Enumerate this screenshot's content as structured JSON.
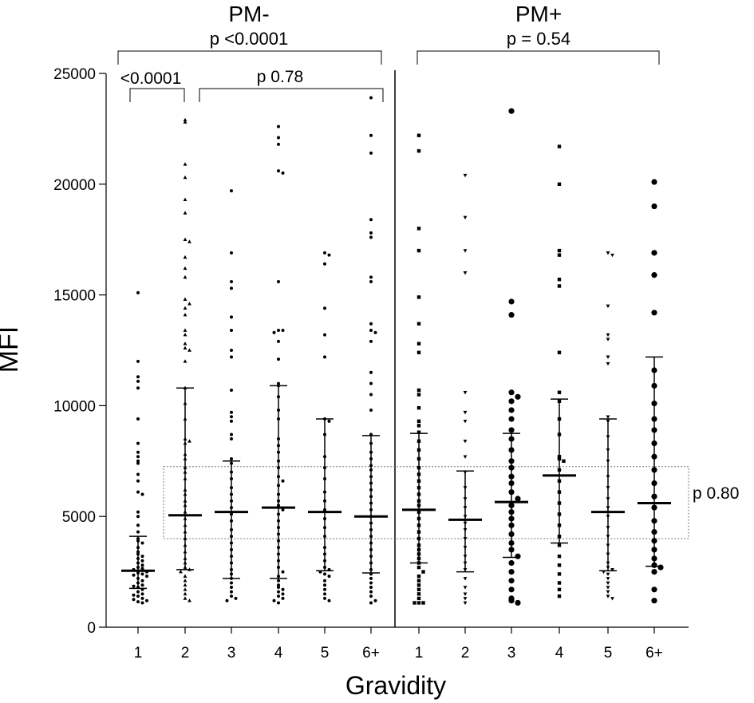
{
  "chart_data": {
    "type": "scatter",
    "ylabel": "MFI",
    "xlabel": "Gravidity",
    "ylim": [
      0,
      25000
    ],
    "yticks": [
      0,
      5000,
      10000,
      15000,
      20000,
      25000
    ],
    "groups": [
      {
        "label": "PM-",
        "overall_p": "p <0.0001",
        "categories": [
          "1",
          "2",
          "3",
          "4",
          "5",
          "6+"
        ],
        "marker": "small",
        "series": [
          {
            "category": "1",
            "marker": "circle",
            "median": 2550,
            "lower": 1750,
            "upper": 4100,
            "values": [
              15100,
              12000,
              11300,
              11100,
              10800,
              9400,
              8300,
              7900,
              7700,
              7500,
              7400,
              6900,
              6600,
              6100,
              6000,
              5200,
              5000,
              4600,
              4300,
              4000,
              3900,
              3800,
              3600,
              3400,
              3300,
              3200,
              3100,
              3000,
              2900,
              2800,
              2700,
              2650,
              2600,
              2500,
              2450,
              2400,
              2350,
              2300,
              2200,
              2100,
              2000,
              1900,
              1850,
              1800,
              1700,
              1600,
              1500,
              1450,
              1400,
              1300,
              1250,
              1200,
              1150,
              1100
            ]
          },
          {
            "category": "2",
            "marker": "triangle-up",
            "median": 5050,
            "lower": 2600,
            "upper": 10800,
            "values": [
              22900,
              22800,
              20900,
              20300,
              19300,
              18700,
              17500,
              17400,
              16700,
              16200,
              15800,
              14800,
              14600,
              14400,
              14100,
              13400,
              13200,
              12800,
              12600,
              12500,
              12000,
              10800,
              10100,
              9400,
              8500,
              8400,
              8300,
              7800,
              7600,
              7200,
              7000,
              6700,
              6200,
              6000,
              5700,
              5500,
              5200,
              4900,
              4600,
              4300,
              4000,
              3700,
              3400,
              3100,
              2900,
              2700,
              2600,
              2500,
              2300,
              2100,
              1900,
              1700,
              1500,
              1300,
              1200
            ]
          },
          {
            "category": "3",
            "marker": "circle",
            "median": 5200,
            "lower": 2200,
            "upper": 7500,
            "values": [
              19700,
              16900,
              15600,
              15300,
              14000,
              13400,
              12500,
              12200,
              10700,
              9700,
              9500,
              9300,
              8700,
              8500,
              7600,
              7400,
              7000,
              6700,
              6300,
              6000,
              5700,
              5400,
              5100,
              4800,
              4400,
              4100,
              3800,
              3500,
              3200,
              2900,
              2600,
              2400,
              2200,
              2000,
              1800,
              1600,
              1400,
              1300,
              1200
            ]
          },
          {
            "category": "4",
            "marker": "circle",
            "median": 5400,
            "lower": 2200,
            "upper": 10900,
            "values": [
              22600,
              22100,
              21800,
              20600,
              20500,
              15600,
              13400,
              13400,
              13300,
              12900,
              12100,
              11000,
              10900,
              10400,
              9800,
              9400,
              8500,
              8200,
              7900,
              7500,
              7200,
              6800,
              6600,
              6400,
              6000,
              5700,
              5500,
              5300,
              5100,
              4800,
              4500,
              4200,
              3900,
              3600,
              3300,
              3000,
              2700,
              2500,
              2300,
              2100,
              1900,
              1800,
              1700,
              1600,
              1500,
              1400,
              1300,
              1200,
              1100
            ]
          },
          {
            "category": "5",
            "marker": "circle",
            "median": 5200,
            "lower": 2550,
            "upper": 9400,
            "values": [
              16900,
              16800,
              16400,
              14400,
              13200,
              12200,
              9400,
              9300,
              8700,
              7700,
              7200,
              6700,
              6100,
              5700,
              5300,
              4900,
              4500,
              4100,
              3600,
              3300,
              3000,
              2700,
              2600,
              2500,
              2400,
              2300,
              2100,
              1900,
              1700,
              1500,
              1300,
              1200
            ]
          },
          {
            "category": "6+",
            "marker": "circle",
            "median": 5000,
            "lower": 2450,
            "upper": 8650,
            "values": [
              23900,
              22200,
              21400,
              18400,
              17800,
              17600,
              15800,
              15600,
              13700,
              13400,
              13300,
              12900,
              11500,
              11000,
              10500,
              9800,
              8700,
              8300,
              7900,
              7600,
              7300,
              7100,
              6800,
              6500,
              6200,
              5900,
              5600,
              5300,
              5000,
              4700,
              4400,
              4100,
              3800,
              3500,
              3200,
              2900,
              2600,
              2400,
              2200,
              2000,
              1800,
              1600,
              1400,
              1200,
              1100
            ]
          }
        ]
      },
      {
        "label": "PM+",
        "overall_p": "p = 0.54",
        "categories": [
          "1",
          "2",
          "3",
          "4",
          "5",
          "6+"
        ],
        "series": [
          {
            "category": "1",
            "marker": "square",
            "median": 5300,
            "lower": 2900,
            "upper": 8750,
            "values": [
              22200,
              21500,
              18000,
              17000,
              14900,
              13700,
              12800,
              12400,
              10700,
              10500,
              9900,
              9300,
              9100,
              8800,
              8400,
              8000,
              7600,
              7200,
              6900,
              6600,
              6300,
              6000,
              5700,
              5500,
              5200,
              4900,
              4600,
              4300,
              4000,
              3700,
              3500,
              3300,
              3100,
              2900,
              2700,
              2500,
              2300,
              2100,
              1900,
              1700,
              1500,
              1300,
              1100,
              1100,
              1100
            ]
          },
          {
            "category": "2",
            "marker": "triangle-down",
            "median": 4850,
            "lower": 2500,
            "upper": 7050,
            "values": [
              20400,
              18500,
              17000,
              16000,
              10600,
              9700,
              9300,
              8400,
              7700,
              7000,
              6300,
              5800,
              5400,
              5000,
              4700,
              4400,
              4000,
              3600,
              3200,
              2900,
              2600,
              2200,
              1800,
              1500,
              1300,
              1100
            ]
          },
          {
            "category": "3",
            "marker": "circle-large",
            "median": 5650,
            "lower": 3150,
            "upper": 8750,
            "values": [
              23300,
              14700,
              14100,
              10600,
              10400,
              10200,
              9800,
              9400,
              8900,
              8500,
              8000,
              7500,
              7200,
              6800,
              6500,
              6100,
              5800,
              5500,
              5200,
              4900,
              4600,
              4200,
              3800,
              3500,
              3200,
              2900,
              2500,
              2100,
              1700,
              1300,
              1200,
              1100
            ]
          },
          {
            "category": "4",
            "marker": "square",
            "median": 6850,
            "lower": 3800,
            "upper": 10300,
            "values": [
              21700,
              20000,
              17000,
              16800,
              15700,
              15400,
              12400,
              10600,
              10200,
              9400,
              8700,
              7700,
              7600,
              7500,
              7100,
              6600,
              6100,
              5600,
              5100,
              4600,
              4100,
              3700,
              3200,
              2800,
              2400,
              2000,
              1700,
              1400
            ]
          },
          {
            "category": "5",
            "marker": "triangle-down",
            "median": 5200,
            "lower": 2550,
            "upper": 9400,
            "values": [
              16900,
              16800,
              14500,
              13200,
              13000,
              12200,
              11900,
              9500,
              9300,
              8600,
              8000,
              7500,
              6800,
              6300,
              5800,
              5400,
              5000,
              4500,
              4100,
              3700,
              3300,
              2900,
              2700,
              2600,
              2500,
              2400,
              2200,
              2000,
              1800,
              1600,
              1400,
              1300
            ]
          },
          {
            "category": "6+",
            "marker": "circle-large",
            "median": 5600,
            "lower": 2750,
            "upper": 12200,
            "values": [
              20100,
              19000,
              16900,
              15900,
              14200,
              11600,
              10900,
              10100,
              9400,
              8900,
              8300,
              7700,
              7100,
              6500,
              5900,
              5400,
              4800,
              4300,
              3900,
              3500,
              3100,
              2800,
              2700,
              2500,
              1700,
              1200
            ]
          }
        ]
      }
    ],
    "annotations": [
      {
        "text": "<0.0001",
        "compare": [
          "PM- 1",
          "PM- 2"
        ]
      },
      {
        "text": "p 0.78",
        "compare": [
          "PM- 2",
          "PM- 6+"
        ]
      },
      {
        "text": "p 0.80",
        "box": "dotted",
        "range": [
          4000,
          7250
        ]
      }
    ]
  }
}
